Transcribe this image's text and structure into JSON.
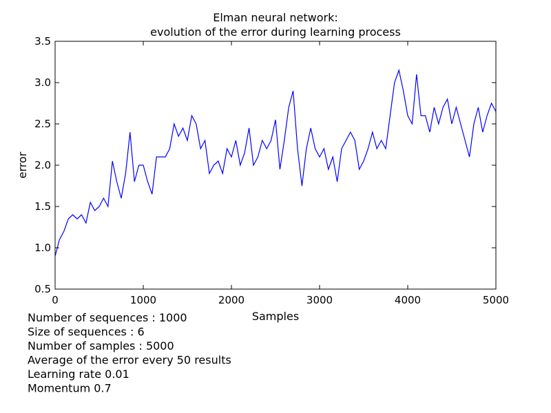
{
  "chart_data": {
    "type": "line",
    "title": [
      "Elman neural network:",
      "evolution of the error during learning process"
    ],
    "x_label": "Samples",
    "y_label": "error",
    "annotations": [
      "Number of sequences : 1000",
      "Size of sequences : 6",
      "Number of samples : 5000",
      "Average of the error every 50 results",
      "Learning rate 0.01",
      "Momentum 0.7"
    ],
    "x": [
      0,
      50,
      100,
      150,
      200,
      250,
      300,
      350,
      400,
      450,
      500,
      550,
      600,
      650,
      700,
      750,
      800,
      850,
      900,
      950,
      1000,
      1050,
      1100,
      1150,
      1200,
      1250,
      1300,
      1350,
      1400,
      1450,
      1500,
      1550,
      1600,
      1650,
      1700,
      1750,
      1800,
      1850,
      1900,
      1950,
      2000,
      2050,
      2100,
      2150,
      2200,
      2250,
      2300,
      2350,
      2400,
      2450,
      2500,
      2550,
      2600,
      2650,
      2700,
      2750,
      2800,
      2850,
      2900,
      2950,
      3000,
      3050,
      3100,
      3150,
      3200,
      3250,
      3300,
      3350,
      3400,
      3450,
      3500,
      3550,
      3600,
      3650,
      3700,
      3750,
      3800,
      3850,
      3900,
      3950,
      4000,
      4050,
      4100,
      4150,
      4200,
      4250,
      4300,
      4350,
      4400,
      4450,
      4500,
      4550,
      4600,
      4650,
      4700,
      4750,
      4800,
      4850,
      4900,
      4950,
      5000
    ],
    "series": [
      {
        "name": "error",
        "color": "#0000ff",
        "values": [
          0.9,
          1.1,
          1.2,
          1.35,
          1.4,
          1.35,
          1.4,
          1.3,
          1.55,
          1.45,
          1.5,
          1.6,
          1.5,
          2.05,
          1.8,
          1.6,
          1.9,
          2.4,
          1.8,
          2.0,
          2.0,
          1.8,
          1.65,
          2.1,
          2.1,
          2.1,
          2.2,
          2.5,
          2.35,
          2.45,
          2.3,
          2.6,
          2.5,
          2.2,
          2.3,
          1.9,
          2.0,
          2.05,
          1.9,
          2.2,
          2.1,
          2.3,
          2.0,
          2.15,
          2.45,
          2.0,
          2.1,
          2.3,
          2.2,
          2.3,
          2.55,
          1.95,
          2.3,
          2.7,
          2.9,
          2.2,
          1.75,
          2.2,
          2.45,
          2.2,
          2.1,
          2.2,
          1.95,
          2.1,
          1.8,
          2.2,
          2.3,
          2.4,
          2.3,
          1.95,
          2.05,
          2.2,
          2.4,
          2.2,
          2.3,
          2.2,
          2.6,
          3.0,
          3.15,
          2.9,
          2.6,
          2.5,
          3.1,
          2.6,
          2.6,
          2.4,
          2.7,
          2.5,
          2.7,
          2.8,
          2.5,
          2.7,
          2.5,
          2.3,
          2.1,
          2.5,
          2.7,
          2.4,
          2.6,
          2.75,
          2.65
        ]
      }
    ],
    "xlim": [
      0,
      5000
    ],
    "xticks": [
      0,
      1000,
      2000,
      3000,
      4000,
      5000
    ],
    "ylim": [
      0.5,
      3.5
    ],
    "yticks": [
      0.5,
      {
        "value": 1,
        "label": "1.0"
      },
      1.5,
      {
        "value": 2,
        "label": "2.0"
      },
      2.5,
      {
        "value": 3,
        "label": "3.0"
      },
      3.5
    ],
    "grid": false
  }
}
